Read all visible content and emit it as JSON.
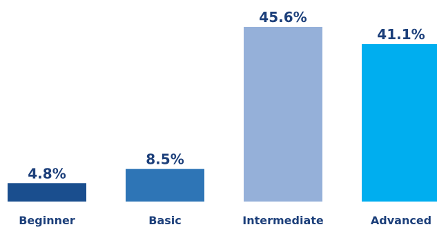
{
  "chart_data": {
    "type": "bar",
    "categories": [
      "Beginner",
      "Basic",
      "Intermediate",
      "Advanced"
    ],
    "values": [
      4.8,
      8.5,
      45.6,
      41.1
    ],
    "value_labels": [
      "4.8%",
      "8.5%",
      "45.6%",
      "41.1%"
    ],
    "bar_colors": [
      "#1a4e8e",
      "#2e75b6",
      "#95b0d9",
      "#00aeef"
    ],
    "value_label_color": "#1c3f7a",
    "category_label_color": "#1c3f7a",
    "ylim": [
      0,
      45.6
    ],
    "grid": false,
    "legend": "none"
  }
}
